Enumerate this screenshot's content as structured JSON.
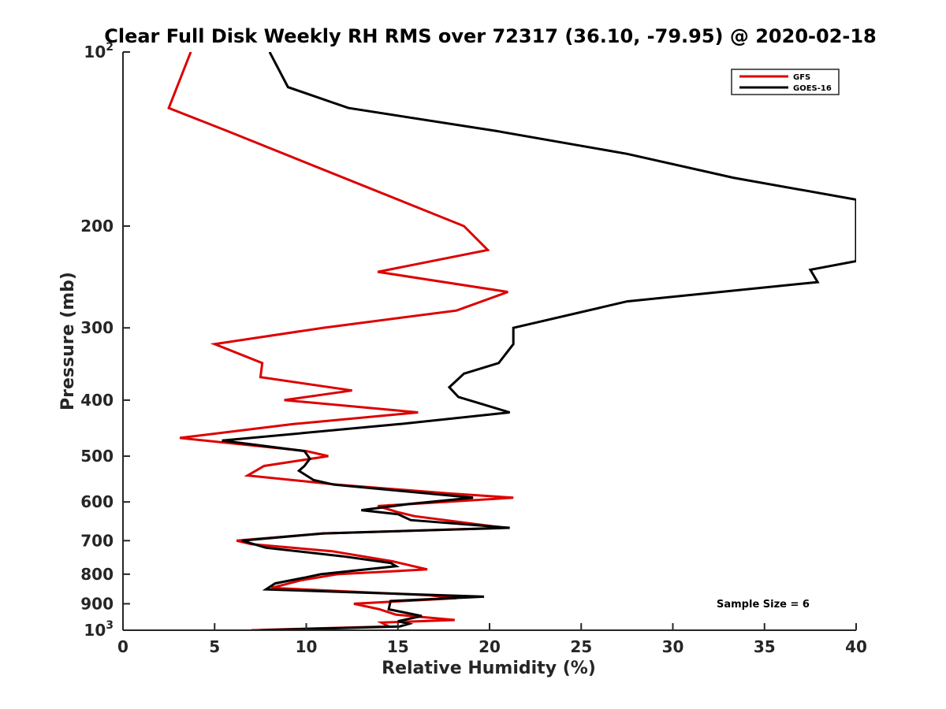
{
  "chart_data": {
    "type": "line",
    "title": "Clear Full Disk Weekly RH RMS over 72317 (36.10, -79.95) @ 2020-02-18",
    "xlabel": "Relative Humidity (%)",
    "ylabel": "Pressure (mb)",
    "xlim": [
      0,
      40
    ],
    "ylim": [
      100,
      1000
    ],
    "y_scale": "log",
    "y_reversed": true,
    "grid": false,
    "legend_position": "top-right",
    "x_ticks": [
      {
        "value": 0,
        "label": "0"
      },
      {
        "value": 5,
        "label": "5"
      },
      {
        "value": 10,
        "label": "10"
      },
      {
        "value": 15,
        "label": "15"
      },
      {
        "value": 20,
        "label": "20"
      },
      {
        "value": 25,
        "label": "25"
      },
      {
        "value": 30,
        "label": "30"
      },
      {
        "value": 35,
        "label": "35"
      },
      {
        "value": 40,
        "label": "40"
      }
    ],
    "y_ticks": [
      {
        "value": 100,
        "label": "10",
        "sup": "2"
      },
      {
        "value": 200,
        "label": "200",
        "sup": ""
      },
      {
        "value": 300,
        "label": "300",
        "sup": ""
      },
      {
        "value": 400,
        "label": "400",
        "sup": ""
      },
      {
        "value": 500,
        "label": "500",
        "sup": ""
      },
      {
        "value": 600,
        "label": "600",
        "sup": ""
      },
      {
        "value": 700,
        "label": "700",
        "sup": ""
      },
      {
        "value": 800,
        "label": "800",
        "sup": ""
      },
      {
        "value": 900,
        "label": "900",
        "sup": ""
      },
      {
        "value": 1000,
        "label": "10",
        "sup": "3"
      }
    ],
    "annotation": "Sample Size = 6",
    "series": [
      {
        "name": "GFS",
        "color": "#dd0000",
        "points": [
          [
            3.7,
            100
          ],
          [
            2.5,
            125
          ],
          [
            5.7,
            137
          ],
          [
            18.6,
            200
          ],
          [
            19.9,
            220
          ],
          [
            13.9,
            240
          ],
          [
            21.0,
            260
          ],
          [
            18.2,
            280
          ],
          [
            10.9,
            300
          ],
          [
            5.0,
            320
          ],
          [
            7.6,
            345
          ],
          [
            7.5,
            365
          ],
          [
            12.5,
            385
          ],
          [
            8.8,
            400
          ],
          [
            16.1,
            420
          ],
          [
            9.3,
            440
          ],
          [
            3.1,
            465
          ],
          [
            10.0,
            490
          ],
          [
            11.2,
            500
          ],
          [
            7.7,
            520
          ],
          [
            6.8,
            540
          ],
          [
            11.7,
            560
          ],
          [
            17.8,
            580
          ],
          [
            21.3,
            590
          ],
          [
            13.9,
            610
          ],
          [
            15.0,
            625
          ],
          [
            15.9,
            635
          ],
          [
            20.8,
            665
          ],
          [
            11.0,
            680
          ],
          [
            6.2,
            700
          ],
          [
            7.0,
            710
          ],
          [
            11.4,
            730
          ],
          [
            14.7,
            760
          ],
          [
            16.6,
            785
          ],
          [
            11.7,
            800
          ],
          [
            9.7,
            820
          ],
          [
            8.1,
            845
          ],
          [
            16.7,
            870
          ],
          [
            18.2,
            880
          ],
          [
            12.6,
            900
          ],
          [
            14.0,
            920
          ],
          [
            14.9,
            940
          ],
          [
            18.1,
            960
          ],
          [
            14.1,
            970
          ],
          [
            14.5,
            985
          ],
          [
            7.0,
            1000
          ]
        ]
      },
      {
        "name": "GOES-16",
        "color": "#000000",
        "points": [
          [
            8.0,
            100
          ],
          [
            9.0,
            115
          ],
          [
            12.3,
            125
          ],
          [
            20.4,
            137
          ],
          [
            27.5,
            150
          ],
          [
            33.3,
            165
          ],
          [
            40.0,
            180
          ],
          [
            40.0,
            230
          ],
          [
            37.5,
            238
          ],
          [
            37.9,
            250
          ],
          [
            27.5,
            270
          ],
          [
            21.3,
            300
          ],
          [
            21.3,
            320
          ],
          [
            20.5,
            345
          ],
          [
            18.6,
            360
          ],
          [
            17.8,
            380
          ],
          [
            18.3,
            395
          ],
          [
            21.1,
            420
          ],
          [
            15.1,
            440
          ],
          [
            5.4,
            470
          ],
          [
            9.9,
            490
          ],
          [
            10.2,
            505
          ],
          [
            9.9,
            520
          ],
          [
            9.6,
            530
          ],
          [
            10.4,
            550
          ],
          [
            11.5,
            560
          ],
          [
            19.1,
            590
          ],
          [
            15.6,
            605
          ],
          [
            13.0,
            620
          ],
          [
            15.0,
            630
          ],
          [
            15.7,
            645
          ],
          [
            21.1,
            665
          ],
          [
            10.9,
            680
          ],
          [
            6.5,
            700
          ],
          [
            7.8,
            720
          ],
          [
            12.0,
            745
          ],
          [
            14.6,
            765
          ],
          [
            14.9,
            775
          ],
          [
            10.8,
            800
          ],
          [
            10.0,
            810
          ],
          [
            8.3,
            830
          ],
          [
            7.8,
            850
          ],
          [
            19.7,
            875
          ],
          [
            14.6,
            890
          ],
          [
            14.5,
            920
          ],
          [
            16.3,
            945
          ],
          [
            15.0,
            965
          ],
          [
            15.6,
            975
          ],
          [
            15.1,
            985
          ],
          [
            7.5,
            1000
          ]
        ]
      }
    ]
  }
}
